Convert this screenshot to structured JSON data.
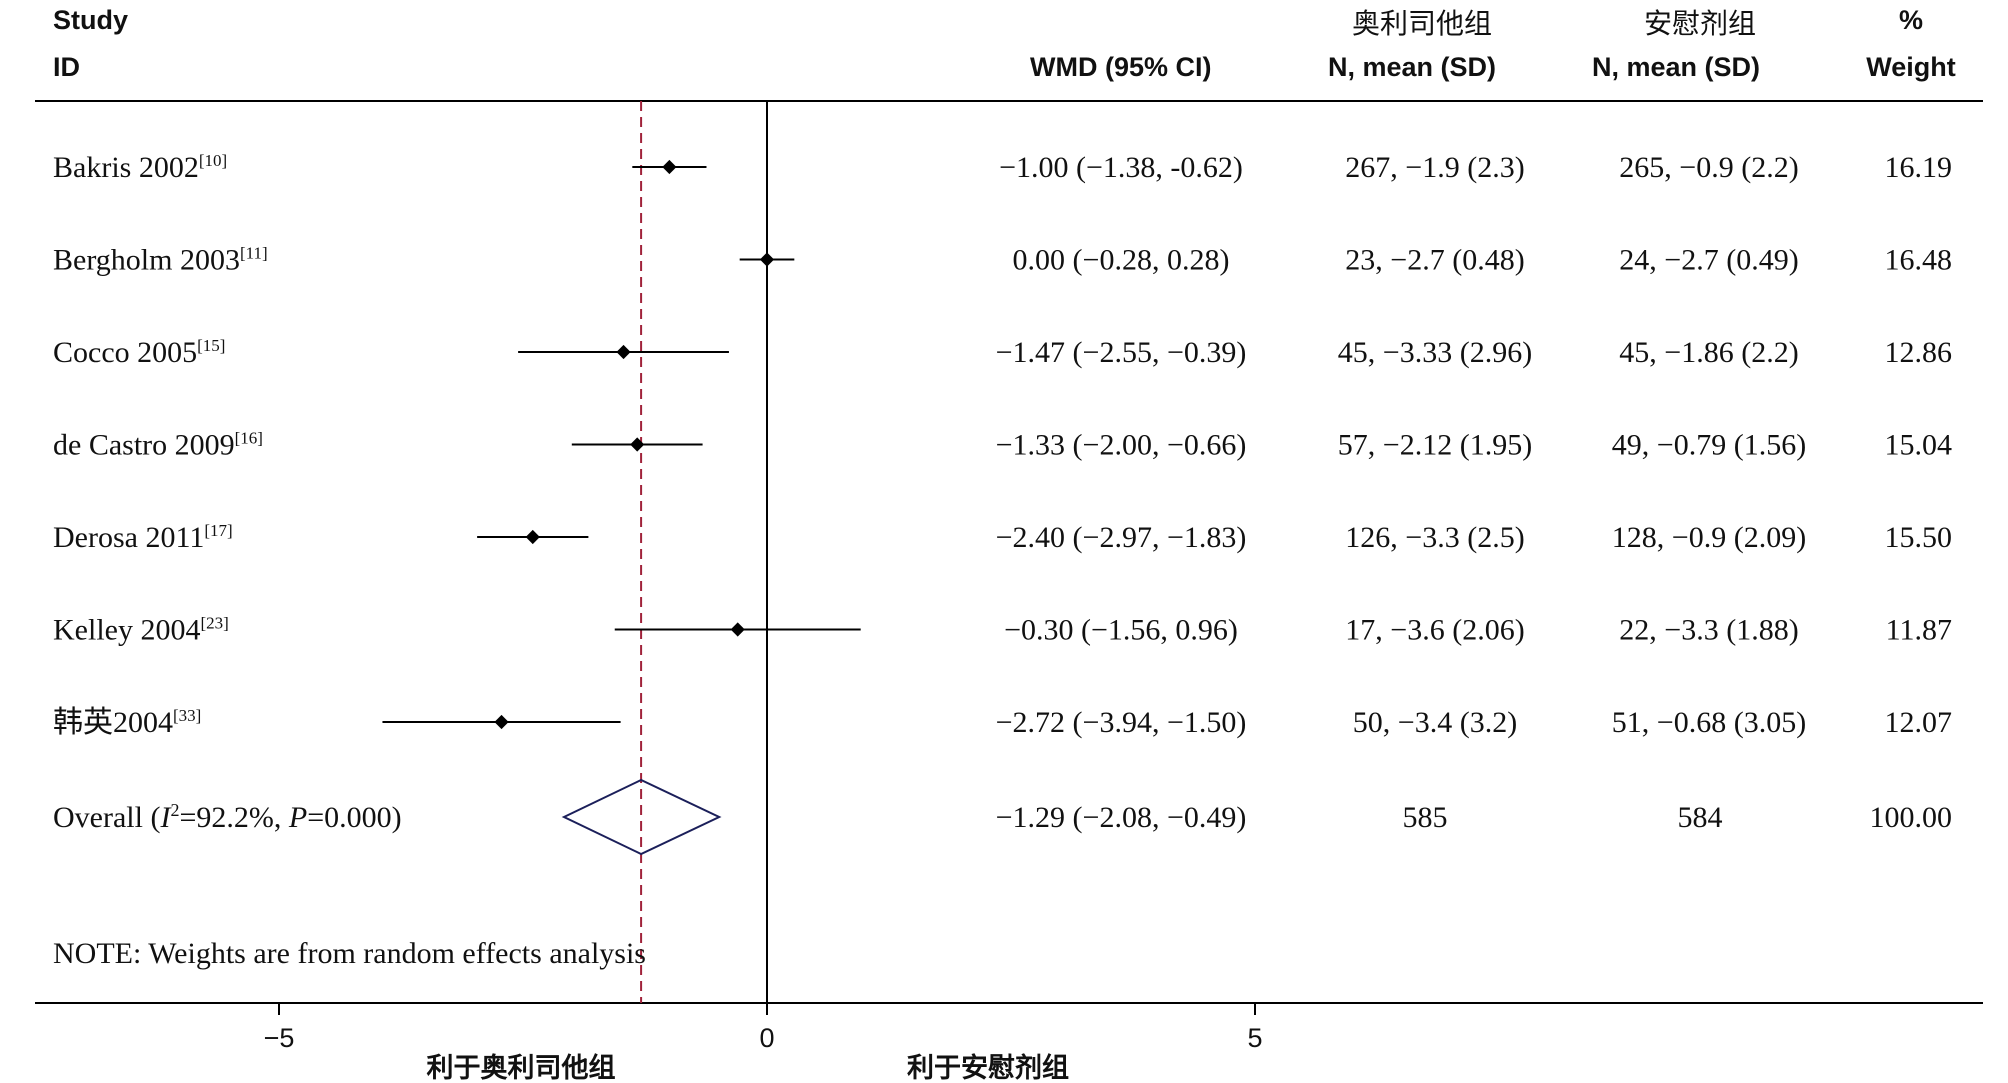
{
  "chart_data": {
    "type": "forest",
    "headers": {
      "study": "Study",
      "id": "ID",
      "wmd": "WMD (95% CI)",
      "group1_name": "奥利司他组",
      "group1_sub": "N, mean (SD)",
      "group2_name": "安慰剂组",
      "group2_sub": "N, mean (SD)",
      "weight_pct": "%",
      "weight_label": "Weight"
    },
    "studies": [
      {
        "name": "Bakris 2002",
        "ref": "[10]",
        "wmd": -1.0,
        "lo": -1.38,
        "hi": -0.62,
        "ci_text": "−1.00 (−1.38, -0.62)",
        "g1": "267, −1.9 (2.3)",
        "g2": "265, −0.9 (2.2)",
        "weight": "16.19"
      },
      {
        "name": "Bergholm 2003",
        "ref": "[11]",
        "wmd": 0.0,
        "lo": -0.28,
        "hi": 0.28,
        "ci_text": "0.00 (−0.28, 0.28)",
        "g1": "23, −2.7 (0.48)",
        "g2": "24, −2.7 (0.49)",
        "weight": "16.48"
      },
      {
        "name": "Cocco 2005",
        "ref": "[15]",
        "wmd": -1.47,
        "lo": -2.55,
        "hi": -0.39,
        "ci_text": "−1.47 (−2.55, −0.39)",
        "g1": "45, −3.33 (2.96)",
        "g2": "45, −1.86 (2.2)",
        "weight": "12.86"
      },
      {
        "name": "de Castro 2009",
        "ref": "[16]",
        "wmd": -1.33,
        "lo": -2.0,
        "hi": -0.66,
        "ci_text": "−1.33 (−2.00, −0.66)",
        "g1": "57, −2.12 (1.95)",
        "g2": "49, −0.79 (1.56)",
        "weight": "15.04"
      },
      {
        "name": "Derosa 2011",
        "ref": "[17]",
        "wmd": -2.4,
        "lo": -2.97,
        "hi": -1.83,
        "ci_text": "−2.40 (−2.97, −1.83)",
        "g1": "126, −3.3 (2.5)",
        "g2": "128, −0.9 (2.09)",
        "weight": "15.50"
      },
      {
        "name": "Kelley 2004",
        "ref": "[23]",
        "wmd": -0.3,
        "lo": -1.56,
        "hi": 0.96,
        "ci_text": "−0.30 (−1.56, 0.96)",
        "g1": "17, −3.6 (2.06)",
        "g2": "22, −3.3 (1.88)",
        "weight": "11.87"
      },
      {
        "name": "韩英2004",
        "ref": "[33]",
        "wmd": -2.72,
        "lo": -3.94,
        "hi": -1.5,
        "ci_text": "−2.72 (−3.94, −1.50)",
        "g1": "50, −3.4 (3.2)",
        "g2": "51, −0.68 (3.05)",
        "weight": "12.07"
      }
    ],
    "overall": {
      "label_prefix": "Overall  (",
      "i2_symbol": "I",
      "i2_exp": "2",
      "i2_value": "=92.2%, ",
      "p_symbol": "P",
      "p_value": "=0.000)",
      "wmd": -1.29,
      "lo": -2.08,
      "hi": -0.49,
      "ci_text": "−1.29 (−2.08, −0.49)",
      "g1": "585",
      "g2": "584",
      "weight": "100.00"
    },
    "note": "NOTE: Weights are from random effects analysis",
    "x_ticks": [
      {
        "value": -5,
        "label": "−5"
      },
      {
        "value": 0,
        "label": "0"
      },
      {
        "value": 5,
        "label": "5"
      }
    ],
    "favours_left": "利于奥利司他组",
    "favours_right": "利于安慰剂组",
    "colors": {
      "axis": "#000000",
      "point": "#000000",
      "overall_line": "#a0223a",
      "diamond": "#1b1f5a"
    }
  }
}
